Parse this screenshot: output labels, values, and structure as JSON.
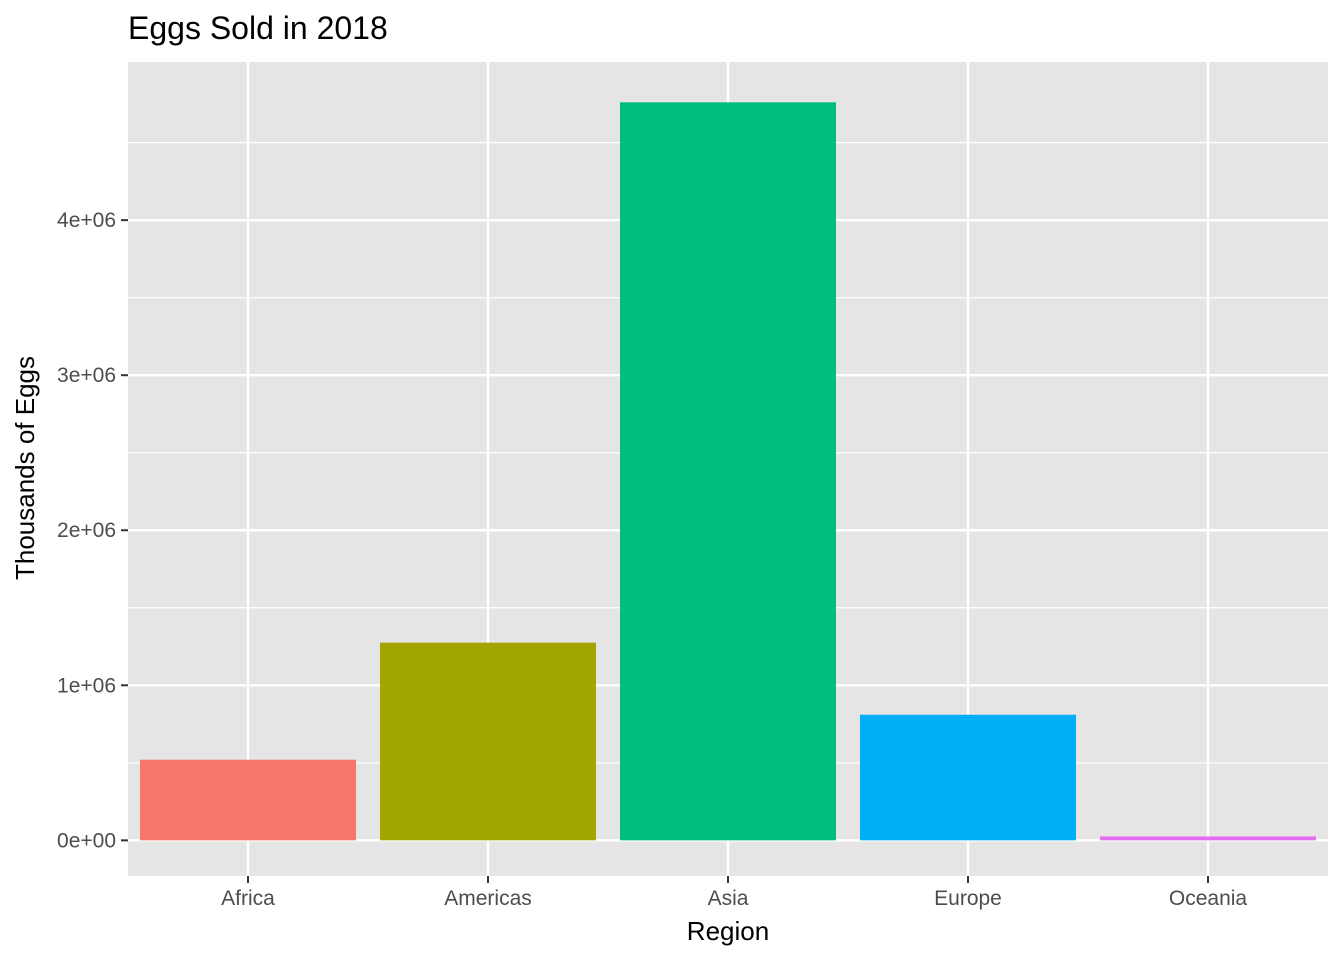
{
  "chart_data": {
    "type": "bar",
    "title": "Eggs Sold in 2018",
    "xlabel": "Region",
    "ylabel": "Thousands of Eggs",
    "categories": [
      "Africa",
      "Americas",
      "Asia",
      "Europe",
      "Oceania"
    ],
    "values": [
      520000,
      1275000,
      4760000,
      810000,
      25000
    ],
    "colors": [
      "#F8766D",
      "#A3A500",
      "#00BF7D",
      "#00B0F6",
      "#E76BF3"
    ],
    "ylim": [
      -230000,
      5020000
    ],
    "yticks": [
      0,
      1000000,
      2000000,
      3000000,
      4000000
    ],
    "ytick_labels": [
      "0e+00",
      "1e+06",
      "2e+06",
      "3e+06",
      "4e+06"
    ],
    "grid": true,
    "legend": "none",
    "panel_background": "#E5E5E5",
    "grid_color": "#FFFFFF"
  }
}
